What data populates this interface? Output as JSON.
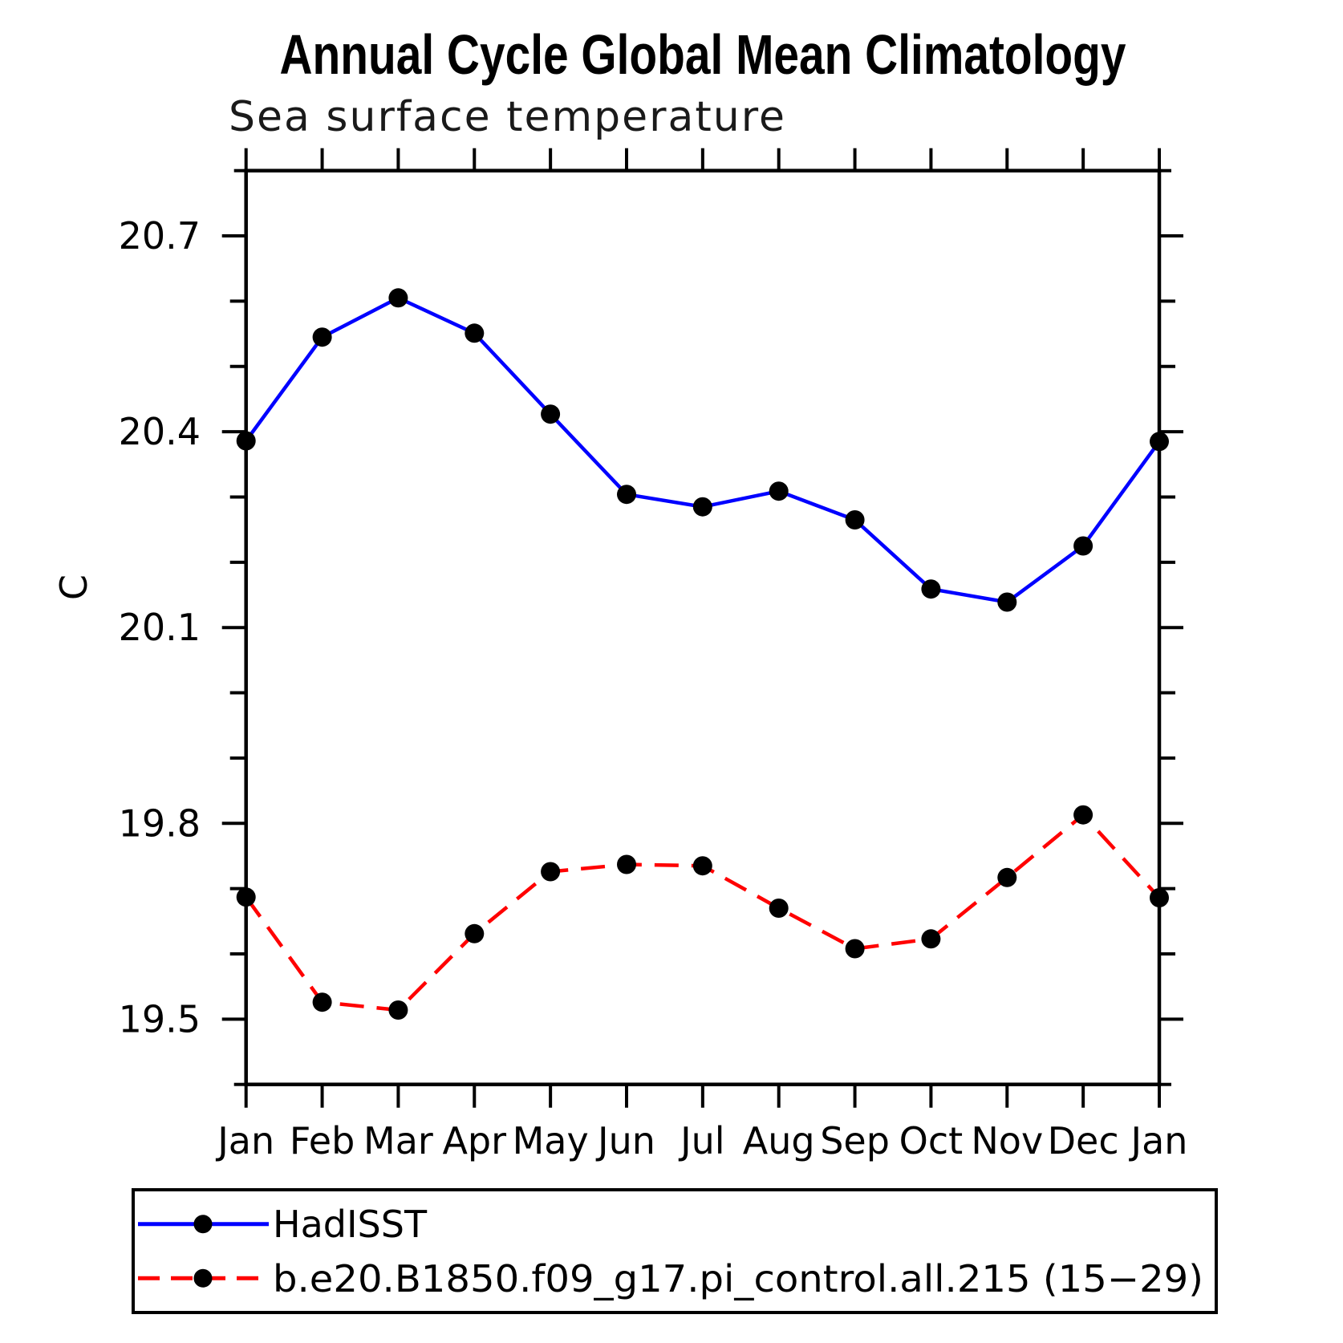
{
  "chart_data": {
    "type": "line",
    "title": "Annual Cycle Global Mean Climatology",
    "subtitle": "Sea surface temperature",
    "ylabel": "C",
    "xlabel": "",
    "categories": [
      "Jan",
      "Feb",
      "Mar",
      "Apr",
      "May",
      "Jun",
      "Jul",
      "Aug",
      "Sep",
      "Oct",
      "Nov",
      "Dec",
      "Jan"
    ],
    "series": [
      {
        "name": "HadISST",
        "color": "#0000ff",
        "line_style": "solid",
        "marker": "circle",
        "marker_color": "#000000",
        "values": [
          20.386,
          20.545,
          20.605,
          20.551,
          20.427,
          20.304,
          20.285,
          20.309,
          20.265,
          20.159,
          20.139,
          20.225,
          20.385
        ]
      },
      {
        "name": "b.e20.B1850.f09_g17.pi_control.all.215 (15−29)",
        "color": "#ff0000",
        "line_style": "dashed",
        "marker": "circle",
        "marker_color": "#000000",
        "values": [
          19.687,
          19.526,
          19.514,
          19.631,
          19.726,
          19.737,
          19.735,
          19.67,
          19.608,
          19.623,
          19.717,
          19.813,
          19.686
        ]
      }
    ],
    "ylim": [
      19.4,
      20.8
    ],
    "yticks_major": [
      19.5,
      19.8,
      20.1,
      20.4,
      20.7
    ],
    "ytick_minor_step": 0.1,
    "grid": "off",
    "legend_position": "bottom-box",
    "frame_color": "#000000",
    "background_color": "#ffffff"
  }
}
